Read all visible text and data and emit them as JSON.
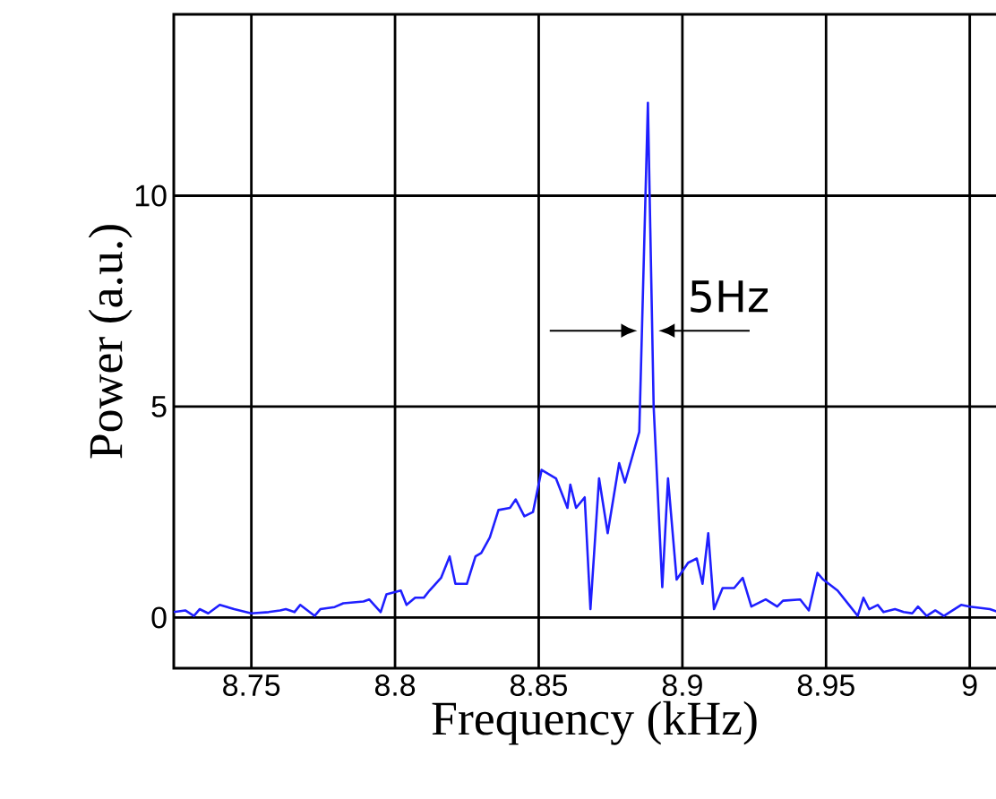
{
  "chart_data": {
    "type": "line",
    "xlabel": "Frequency (kHz)",
    "ylabel": "Power (a.u.)",
    "xlim": [
      8.723,
      9.016
    ],
    "ylim": [
      -1.2,
      14.3
    ],
    "xticks": [
      8.75,
      8.8,
      8.85,
      8.9,
      8.95,
      9
    ],
    "yticks": [
      0,
      5,
      10
    ],
    "grid": true,
    "marker": "none",
    "line_style": "solid",
    "annotations": [
      {
        "text": "5Hz",
        "x": 8.888,
        "y": 6.8
      }
    ],
    "series": [
      {
        "color": "#1f1fff",
        "x": [
          8.723,
          8.727,
          8.73,
          8.732,
          8.735,
          8.739,
          8.744,
          8.75,
          8.756,
          8.76,
          8.762,
          8.765,
          8.767,
          8.772,
          8.774,
          8.779,
          8.782,
          8.789,
          8.791,
          8.795,
          8.797,
          8.802,
          8.804,
          8.807,
          8.81,
          8.812,
          8.816,
          8.819,
          8.821,
          8.825,
          8.828,
          8.83,
          8.833,
          8.836,
          8.84,
          8.842,
          8.845,
          8.848,
          8.851,
          8.856,
          8.86,
          8.861,
          8.863,
          8.866,
          8.868,
          8.871,
          8.874,
          8.878,
          8.88,
          8.885,
          8.888,
          8.89,
          8.893,
          8.895,
          8.898,
          8.902,
          8.905,
          8.907,
          8.909,
          8.911,
          8.914,
          8.918,
          8.921,
          8.924,
          8.929,
          8.933,
          8.935,
          8.941,
          8.944,
          8.947,
          8.949,
          8.954,
          8.958,
          8.961,
          8.963,
          8.965,
          8.968,
          8.97,
          8.974,
          8.977,
          8.98,
          8.982,
          8.985,
          8.988,
          8.991,
          8.997,
          9.0,
          9.007,
          9.01
        ],
        "values": [
          0.13,
          0.17,
          0.04,
          0.2,
          0.1,
          0.3,
          0.2,
          0.1,
          0.13,
          0.17,
          0.2,
          0.13,
          0.3,
          0.04,
          0.2,
          0.25,
          0.34,
          0.38,
          0.43,
          0.13,
          0.55,
          0.64,
          0.3,
          0.47,
          0.47,
          0.64,
          0.94,
          1.45,
          0.8,
          0.8,
          1.45,
          1.53,
          1.9,
          2.55,
          2.6,
          2.8,
          2.4,
          2.5,
          3.5,
          3.3,
          2.6,
          3.15,
          2.6,
          2.85,
          0.2,
          3.3,
          2.0,
          3.66,
          3.2,
          4.4,
          12.2,
          5.0,
          0.72,
          3.3,
          0.9,
          1.3,
          1.4,
          0.8,
          2.0,
          0.2,
          0.7,
          0.7,
          0.94,
          0.26,
          0.43,
          0.26,
          0.4,
          0.43,
          0.17,
          1.06,
          0.9,
          0.64,
          0.3,
          0.04,
          0.47,
          0.2,
          0.3,
          0.13,
          0.2,
          0.13,
          0.1,
          0.26,
          0.04,
          0.17,
          0.04,
          0.3,
          0.26,
          0.2,
          0.13
        ]
      }
    ]
  }
}
